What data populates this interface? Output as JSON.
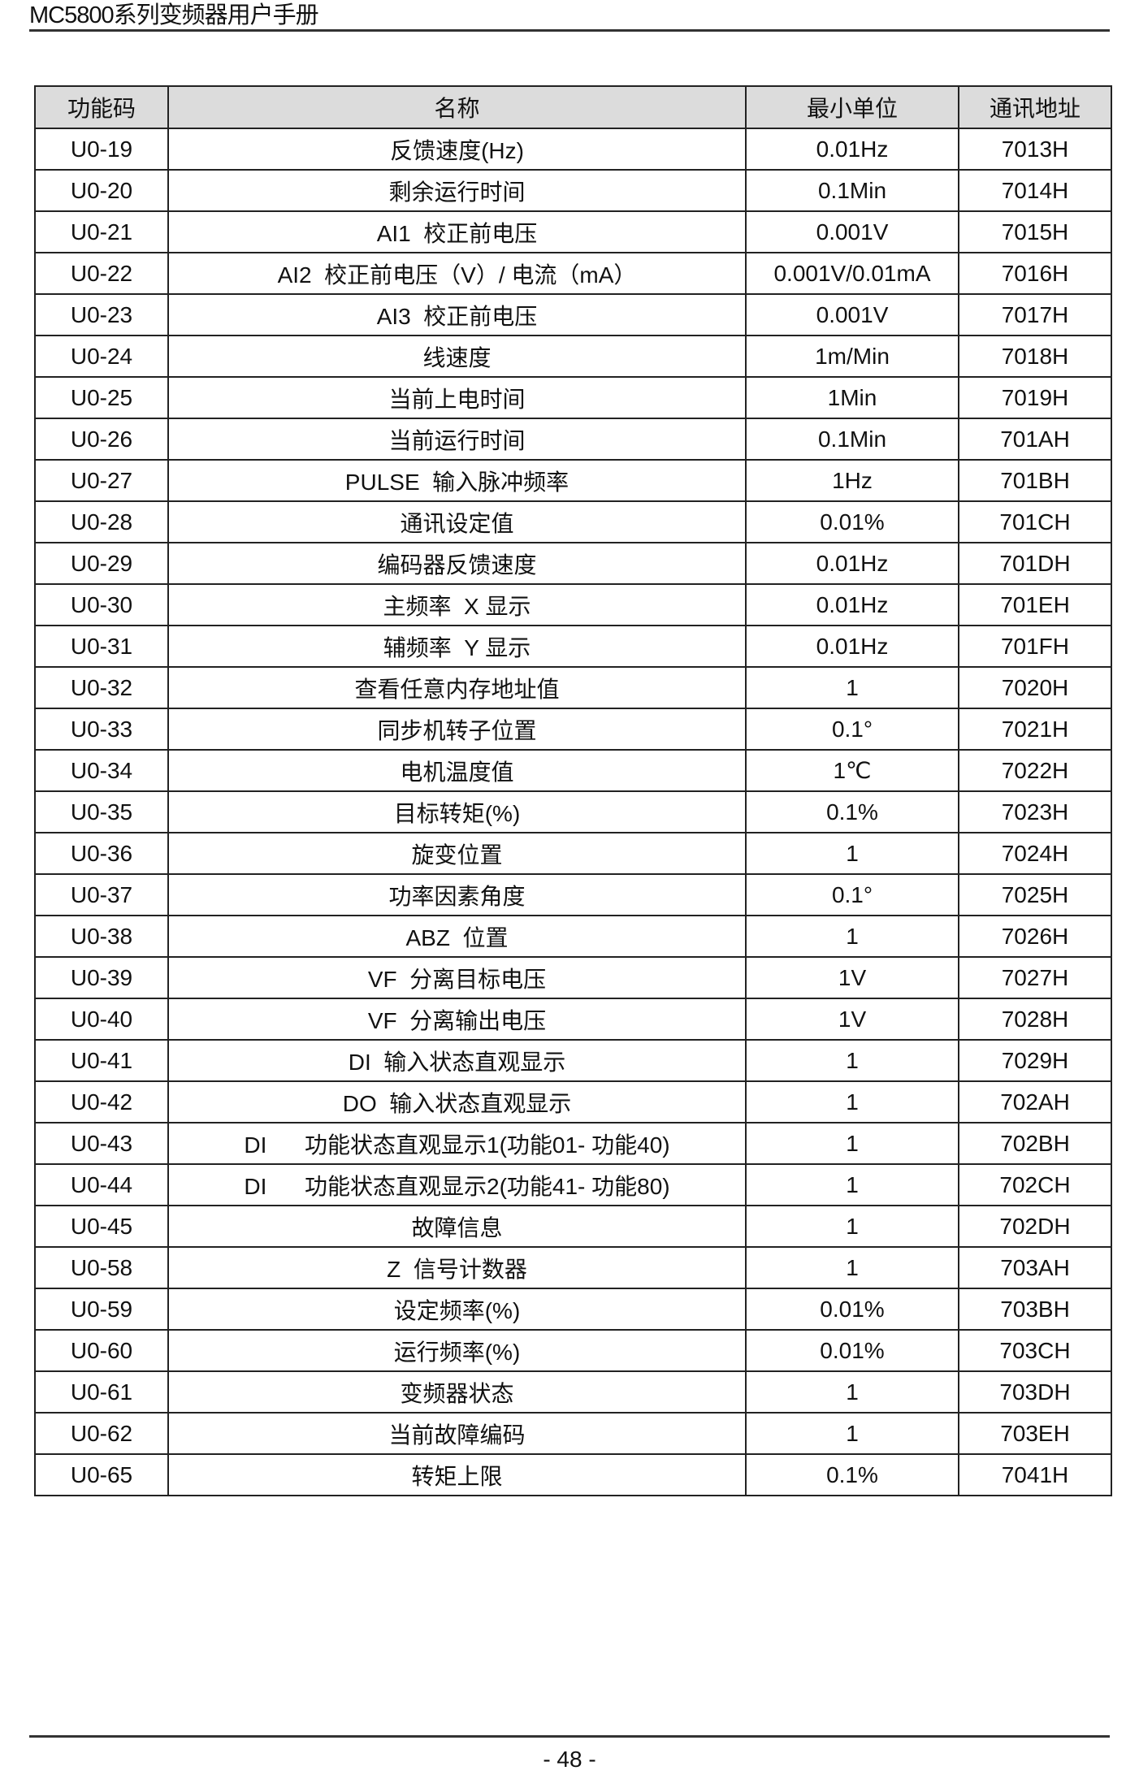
{
  "header": {
    "title": "MC5800系列变频器用户手册"
  },
  "table": {
    "columns": [
      "功能码",
      "名称",
      "最小单位",
      "通讯地址"
    ],
    "rows": [
      [
        "U0-19",
        "反馈速度(Hz)",
        "0.01Hz",
        "7013H"
      ],
      [
        "U0-20",
        "剩余运行时间",
        "0.1Min",
        "7014H"
      ],
      [
        "U0-21",
        "AI1  校正前电压",
        "0.001V",
        "7015H"
      ],
      [
        "U0-22",
        "AI2  校正前电压（V）/ 电流（mA）",
        "0.001V/0.01mA",
        "7016H"
      ],
      [
        "U0-23",
        "AI3  校正前电压",
        "0.001V",
        "7017H"
      ],
      [
        "U0-24",
        "线速度",
        "1m/Min",
        "7018H"
      ],
      [
        "U0-25",
        "当前上电时间",
        "1Min",
        "7019H"
      ],
      [
        "U0-26",
        "当前运行时间",
        "0.1Min",
        "701AH"
      ],
      [
        "U0-27",
        "PULSE  输入脉冲频率",
        "1Hz",
        "701BH"
      ],
      [
        "U0-28",
        "通讯设定值",
        "0.01%",
        "701CH"
      ],
      [
        "U0-29",
        "编码器反馈速度",
        "0.01Hz",
        "701DH"
      ],
      [
        "U0-30",
        "主频率  X 显示",
        "0.01Hz",
        "701EH"
      ],
      [
        "U0-31",
        "辅频率  Y 显示",
        "0.01Hz",
        "701FH"
      ],
      [
        "U0-32",
        "查看任意内存地址值",
        "1",
        "7020H"
      ],
      [
        "U0-33",
        "同步机转子位置",
        "0.1°",
        "7021H"
      ],
      [
        "U0-34",
        "电机温度值",
        "1℃",
        "7022H"
      ],
      [
        "U0-35",
        "目标转矩(%)",
        "0.1%",
        "7023H"
      ],
      [
        "U0-36",
        "旋变位置",
        "1",
        "7024H"
      ],
      [
        "U0-37",
        "功率因素角度",
        "0.1°",
        "7025H"
      ],
      [
        "U0-38",
        "ABZ  位置",
        "1",
        "7026H"
      ],
      [
        "U0-39",
        "VF  分离目标电压",
        "1V",
        "7027H"
      ],
      [
        "U0-40",
        "VF  分离输出电压",
        "1V",
        "7028H"
      ],
      [
        "U0-41",
        "DI  输入状态直观显示",
        "1",
        "7029H"
      ],
      [
        "U0-42",
        "DO  输入状态直观显示",
        "1",
        "702AH"
      ],
      [
        "U0-43",
        "DI      功能状态直观显示1(功能01- 功能40)",
        "1",
        "702BH"
      ],
      [
        "U0-44",
        "DI      功能状态直观显示2(功能41- 功能80)",
        "1",
        "702CH"
      ],
      [
        "U0-45",
        "故障信息",
        "1",
        "702DH"
      ],
      [
        "U0-58",
        "Z  信号计数器",
        "1",
        "703AH"
      ],
      [
        "U0-59",
        "设定频率(%)",
        "0.01%",
        "703BH"
      ],
      [
        "U0-60",
        "运行频率(%)",
        "0.01%",
        "703CH"
      ],
      [
        "U0-61",
        "变频器状态",
        "1",
        "703DH"
      ],
      [
        "U0-62",
        "当前故障编码",
        "1",
        "703EH"
      ],
      [
        "U0-65",
        "转矩上限",
        "0.1%",
        "7041H"
      ]
    ]
  },
  "footer": {
    "page_number": "- 48 -"
  }
}
